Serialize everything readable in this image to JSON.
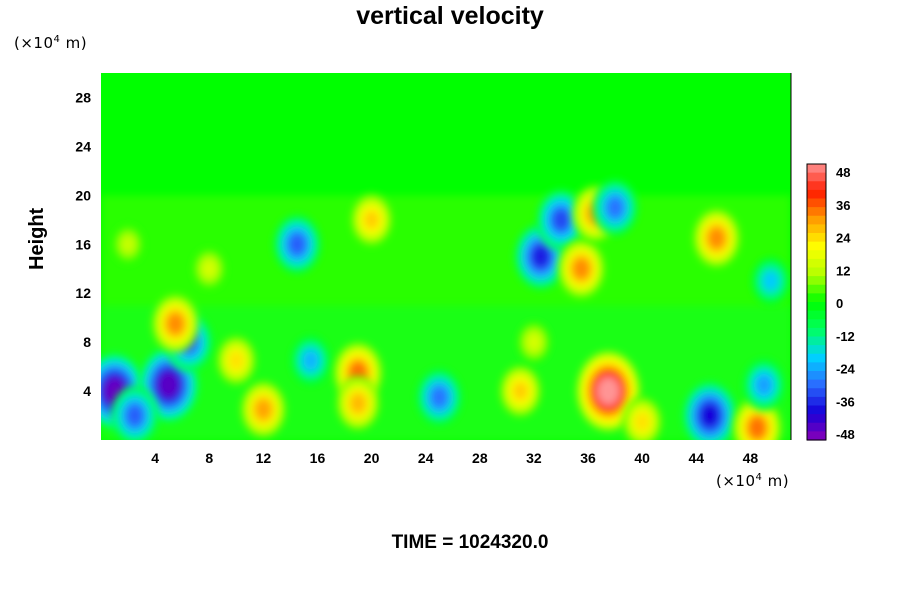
{
  "chart_data": {
    "type": "heatmap",
    "title": "vertical velocity",
    "ylabel": "Height",
    "xlabel": "",
    "x_unit": {
      "prefix": "(×10",
      "exp": "4",
      "suffix": " m)"
    },
    "y_unit": {
      "prefix": "(×10",
      "exp": "4",
      "suffix": " m)"
    },
    "xlim": [
      0,
      51
    ],
    "ylim": [
      0,
      30
    ],
    "x_ticks": [
      4,
      8,
      12,
      16,
      20,
      24,
      28,
      32,
      36,
      40,
      44,
      48
    ],
    "y_ticks": [
      4,
      8,
      12,
      16,
      20,
      24,
      28
    ],
    "colorbar": {
      "min": -48,
      "max": 48,
      "ticks": [
        48,
        36,
        24,
        12,
        0,
        -12,
        -24,
        -36,
        -48
      ],
      "stops": [
        "#8a00b8",
        "#1500d8",
        "#2a6cff",
        "#00d2ff",
        "#00ff60",
        "#00ff00",
        "#b4ff00",
        "#ffff00",
        "#ff9c00",
        "#ff1c00",
        "#ff9494"
      ]
    },
    "background_value": 0,
    "features": [
      {
        "x": 1.0,
        "y": 4.0,
        "value": -45
      },
      {
        "x": 5.0,
        "y": 4.5,
        "value": -44
      },
      {
        "x": 6.5,
        "y": 8.0,
        "value": -30
      },
      {
        "x": 2.5,
        "y": 2.0,
        "value": -30
      },
      {
        "x": 5.5,
        "y": 9.5,
        "value": 30
      },
      {
        "x": 10.0,
        "y": 6.5,
        "value": 22
      },
      {
        "x": 12.0,
        "y": 2.5,
        "value": 28
      },
      {
        "x": 15.5,
        "y": 6.5,
        "value": -22
      },
      {
        "x": 14.5,
        "y": 16.0,
        "value": -30
      },
      {
        "x": 19.0,
        "y": 5.5,
        "value": 32
      },
      {
        "x": 19.0,
        "y": 3.0,
        "value": 26
      },
      {
        "x": 20.0,
        "y": 18.0,
        "value": 24
      },
      {
        "x": 25.0,
        "y": 3.5,
        "value": -28
      },
      {
        "x": 31.0,
        "y": 4.0,
        "value": 24
      },
      {
        "x": 32.0,
        "y": 8.0,
        "value": 14
      },
      {
        "x": 32.5,
        "y": 15.0,
        "value": -36
      },
      {
        "x": 34.0,
        "y": 18.0,
        "value": -32
      },
      {
        "x": 35.5,
        "y": 14.0,
        "value": 30
      },
      {
        "x": 36.5,
        "y": 18.5,
        "value": 28
      },
      {
        "x": 37.5,
        "y": 4.0,
        "value": 48
      },
      {
        "x": 38.0,
        "y": 19.0,
        "value": -28
      },
      {
        "x": 40.0,
        "y": 1.5,
        "value": 22
      },
      {
        "x": 45.0,
        "y": 2.0,
        "value": -38
      },
      {
        "x": 45.5,
        "y": 16.5,
        "value": 30
      },
      {
        "x": 48.5,
        "y": 1.0,
        "value": 32
      },
      {
        "x": 49.0,
        "y": 4.5,
        "value": -24
      },
      {
        "x": 49.5,
        "y": 13.0,
        "value": -20
      },
      {
        "x": 2.0,
        "y": 16.0,
        "value": 12
      },
      {
        "x": 8.0,
        "y": 14.0,
        "value": 14
      }
    ]
  },
  "footer": {
    "time_label": "TIME = 1024320.0"
  }
}
